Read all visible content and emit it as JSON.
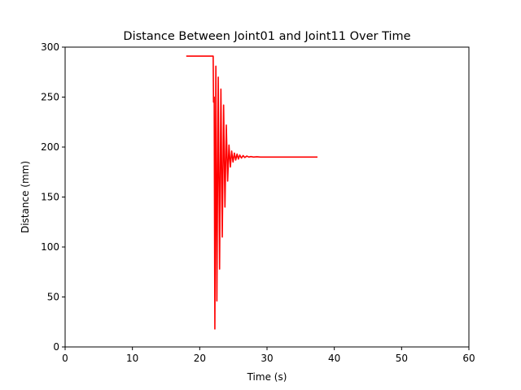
{
  "chart_data": {
    "type": "line",
    "title": "Distance Between Joint01 and Joint11 Over Time",
    "xlabel": "Time (s)",
    "ylabel": "Distance (mm)",
    "xlim": [
      0,
      60
    ],
    "ylim": [
      0,
      300
    ],
    "xticks": [
      0,
      10,
      20,
      30,
      40,
      50,
      60
    ],
    "yticks": [
      0,
      50,
      100,
      150,
      200,
      250,
      300
    ],
    "grid": false,
    "series": [
      {
        "color": "#ff0000",
        "x": [
          18.0,
          22.0,
          22.05,
          22.15,
          22.25,
          22.4,
          22.55,
          22.75,
          22.95,
          23.15,
          23.35,
          23.55,
          23.75,
          23.95,
          24.15,
          24.35,
          24.55,
          24.75,
          24.95,
          25.15,
          25.35,
          25.55,
          25.75,
          25.95,
          26.2,
          26.45,
          26.7,
          27.0,
          27.3,
          27.6,
          28.0,
          28.5,
          29.0,
          30.0,
          37.5
        ],
        "y": [
          291,
          291,
          245,
          250,
          18,
          281,
          46,
          270,
          78,
          258,
          110,
          242,
          140,
          222,
          166,
          202,
          180,
          196,
          185,
          194,
          187,
          193,
          188,
          192,
          189,
          191.5,
          189.5,
          191,
          190,
          190.5,
          190,
          190.3,
          190,
          190,
          190
        ]
      }
    ]
  }
}
